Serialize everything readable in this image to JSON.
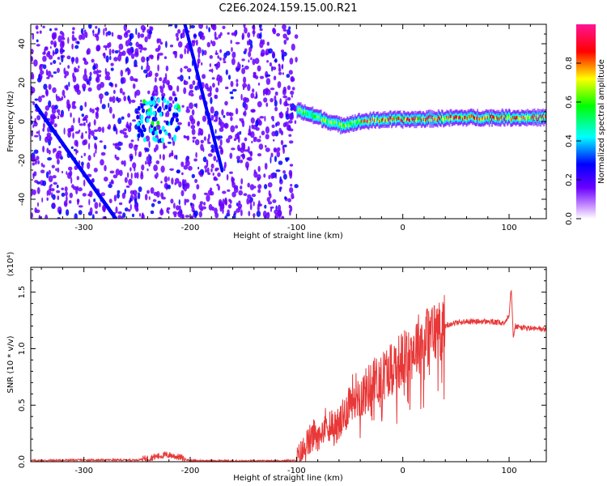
{
  "figure": {
    "title": "C2E6.2024.159.15.00.R21"
  },
  "colorbar": {
    "label": "Normalized spectral amplitude",
    "ticks": [
      "0.0",
      "0.2",
      "0.4",
      "0.6",
      "0.8"
    ],
    "colors": [
      "#ffffff",
      "#7a00ff",
      "#0000ff",
      "#00ffff",
      "#00ff00",
      "#ffff00",
      "#ff0000",
      "#ff0080"
    ]
  },
  "chart_data": [
    {
      "type": "heatmap",
      "xlabel": "Height of straight line (km)",
      "ylabel": "Frequency (Hz)",
      "xlim": [
        -350,
        135
      ],
      "ylim": [
        -50,
        50
      ],
      "x_ticks": [
        "-300",
        "-200",
        "-100",
        "0",
        "100"
      ],
      "y_ticks": [
        "-40",
        "-20",
        "0",
        "20",
        "40"
      ],
      "features": [
        {
          "kind": "noise",
          "x": [
            -350,
            -100
          ],
          "y": [
            -50,
            50
          ]
        },
        {
          "kind": "streak",
          "x": [
            -345,
            -270
          ],
          "y": [
            8,
            -50
          ]
        },
        {
          "kind": "streak",
          "x": [
            -205,
            -170
          ],
          "y": [
            50,
            -25
          ]
        },
        {
          "kind": "cluster",
          "x": [
            -250,
            -210
          ],
          "y": [
            -10,
            12
          ]
        },
        {
          "kind": "echo_band",
          "x": [
            -100,
            135
          ],
          "y_center": [
            6,
            2,
            -2,
            0,
            1,
            1,
            2,
            2
          ],
          "x_points": [
            -100,
            -80,
            -60,
            -40,
            -20,
            0,
            60,
            135
          ]
        }
      ]
    },
    {
      "type": "line",
      "xlabel": "Height of straight line (km)",
      "ylabel": "SNR (10 * v/v)",
      "y_scale_note": "(x10⁴)",
      "xlim": [
        -350,
        135
      ],
      "ylim": [
        0,
        1.72
      ],
      "x_ticks": [
        "-300",
        "-200",
        "-100",
        "0",
        "100"
      ],
      "y_ticks": [
        "0.0",
        "0.5",
        "1.0",
        "1.5"
      ],
      "color": "#e83838",
      "x": [
        -350,
        -300,
        -250,
        -240,
        -230,
        -220,
        -210,
        -200,
        -150,
        -100,
        -95,
        -90,
        -85,
        -80,
        -75,
        -70,
        -65,
        -60,
        -55,
        -50,
        -45,
        -40,
        -35,
        -30,
        -25,
        -20,
        -15,
        -10,
        -5,
        0,
        5,
        10,
        15,
        20,
        25,
        30,
        35,
        40,
        45,
        50,
        60,
        70,
        80,
        90,
        95,
        100,
        102,
        104,
        106,
        110,
        120,
        135
      ],
      "y": [
        0.01,
        0.015,
        0.015,
        0.03,
        0.05,
        0.06,
        0.04,
        0.01,
        0.005,
        0.01,
        0.08,
        0.15,
        0.22,
        0.25,
        0.3,
        0.35,
        0.3,
        0.32,
        0.4,
        0.55,
        0.6,
        0.58,
        0.62,
        0.68,
        0.72,
        0.75,
        0.8,
        0.85,
        0.88,
        0.9,
        0.95,
        1.0,
        1.05,
        1.08,
        1.12,
        1.15,
        1.18,
        1.2,
        1.22,
        1.23,
        1.24,
        1.24,
        1.24,
        1.23,
        1.22,
        1.3,
        1.55,
        1.1,
        1.2,
        1.19,
        1.18,
        1.17
      ]
    }
  ]
}
